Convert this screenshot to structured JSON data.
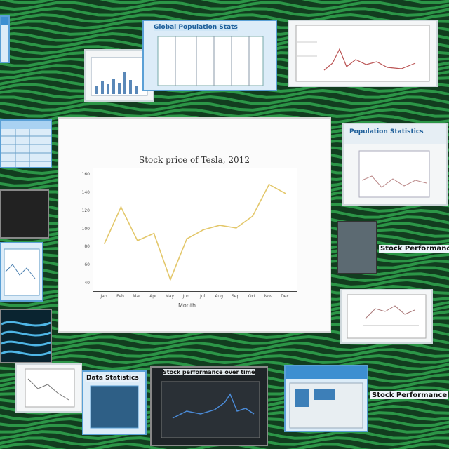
{
  "collage": {
    "main_chart": {
      "title": "Stock price of Tesla, 2012",
      "ylabel": "",
      "xlabel": "Month",
      "y_ticks": [
        "160",
        "140",
        "120",
        "100",
        "80",
        "60",
        "40"
      ],
      "x_ticks": [
        "Jan",
        "Feb",
        "Mar",
        "Apr",
        "May",
        "Jun",
        "Jul",
        "Aug",
        "Sep",
        "Oct",
        "Nov",
        "Dec"
      ]
    },
    "captions": {
      "top_tile": "Global Population Stats",
      "right_strip": "Population Statistics",
      "right_label": "Stock Performance",
      "bottom_left_tile": "Data Statistics",
      "bottom_center_tile": "Stock performance over time",
      "bottom_right_label": "Stock Performance"
    },
    "colors": {
      "background_green": "#1e8a3c",
      "main_line": "#e3c76a",
      "panel_blue": "#3d8fd1"
    }
  },
  "chart_data": {
    "type": "line",
    "title": "Stock price of Tesla, 2012",
    "xlabel": "Month",
    "ylabel": "",
    "categories": [
      "Jan",
      "Feb",
      "Mar",
      "Apr",
      "May",
      "Jun",
      "Jul",
      "Aug",
      "Sep",
      "Oct",
      "Nov",
      "Dec"
    ],
    "series": [
      {
        "values": [
          85,
          125,
          88,
          96,
          45,
          90,
          100,
          105,
          102,
          115,
          150,
          140
        ]
      }
    ],
    "ylim": [
      40,
      160
    ],
    "grid": false
  }
}
